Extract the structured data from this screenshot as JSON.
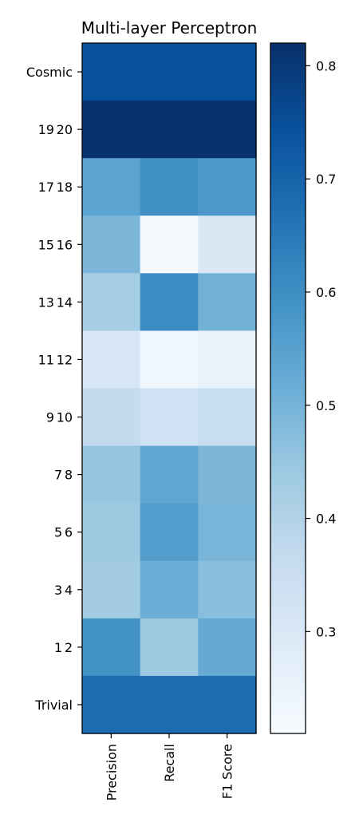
{
  "chart_data": {
    "type": "heatmap",
    "title": "Multi-layer Perceptron",
    "xlabel": "",
    "ylabel": "",
    "columns": [
      "Precision",
      "Recall",
      "F1 Score"
    ],
    "rows": [
      "Cosmic",
      "19 20",
      "17 18",
      "15 16",
      "13 14",
      "11 12",
      "9 10",
      "7 8",
      "5 6",
      "3 4",
      "1 2",
      "Trivial"
    ],
    "values": [
      [
        0.745,
        0.745,
        0.745
      ],
      [
        0.815,
        0.815,
        0.815
      ],
      [
        0.545,
        0.595,
        0.575
      ],
      [
        0.49,
        0.215,
        0.3
      ],
      [
        0.425,
        0.605,
        0.505
      ],
      [
        0.305,
        0.23,
        0.255
      ],
      [
        0.365,
        0.335,
        0.355
      ],
      [
        0.45,
        0.535,
        0.49
      ],
      [
        0.44,
        0.56,
        0.495
      ],
      [
        0.43,
        0.515,
        0.47
      ],
      [
        0.59,
        0.44,
        0.525
      ],
      [
        0.68,
        0.68,
        0.68
      ]
    ],
    "colorbar": {
      "vmin": 0.21,
      "vmax": 0.82,
      "ticks": [
        0.3,
        0.4,
        0.5,
        0.6,
        0.7,
        0.8
      ],
      "tick_labels": [
        "0.3",
        "0.4",
        "0.5",
        "0.6",
        "0.7",
        "0.8"
      ],
      "colormap": "Blues"
    }
  }
}
